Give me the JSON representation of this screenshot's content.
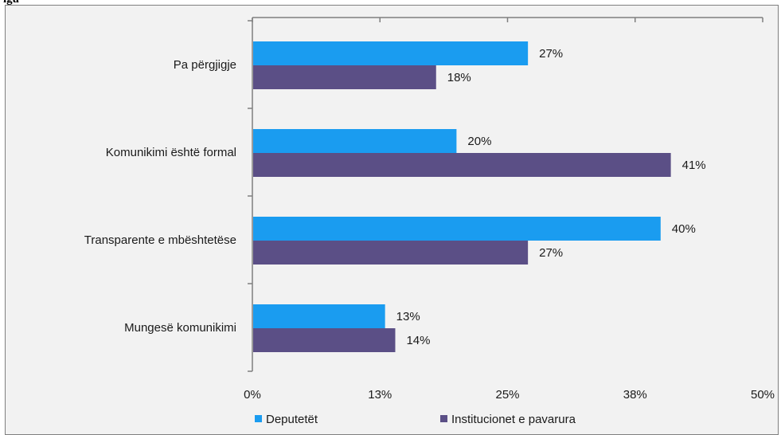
{
  "caption": "igu",
  "chart_data": {
    "type": "bar",
    "orientation": "horizontal",
    "categories": [
      "Pa përgjigje",
      "Komunikimi është formal",
      "Transparente e mbështetëse",
      "Mungesë komunikimi"
    ],
    "series": [
      {
        "name": "Deputetët",
        "values": [
          27,
          20,
          40,
          13
        ],
        "color": "#1a9cf0"
      },
      {
        "name": "Institucionet e pavarura",
        "values": [
          18,
          41,
          27,
          14
        ],
        "color": "#5b4f86"
      }
    ],
    "value_suffix": "%",
    "xlim": [
      0,
      50
    ],
    "xticks": [
      "0%",
      "13%",
      "25%",
      "38%",
      "50%"
    ],
    "xtick_values": [
      0,
      12.5,
      25,
      37.5,
      50
    ],
    "grid": false,
    "legend_position": "bottom"
  }
}
